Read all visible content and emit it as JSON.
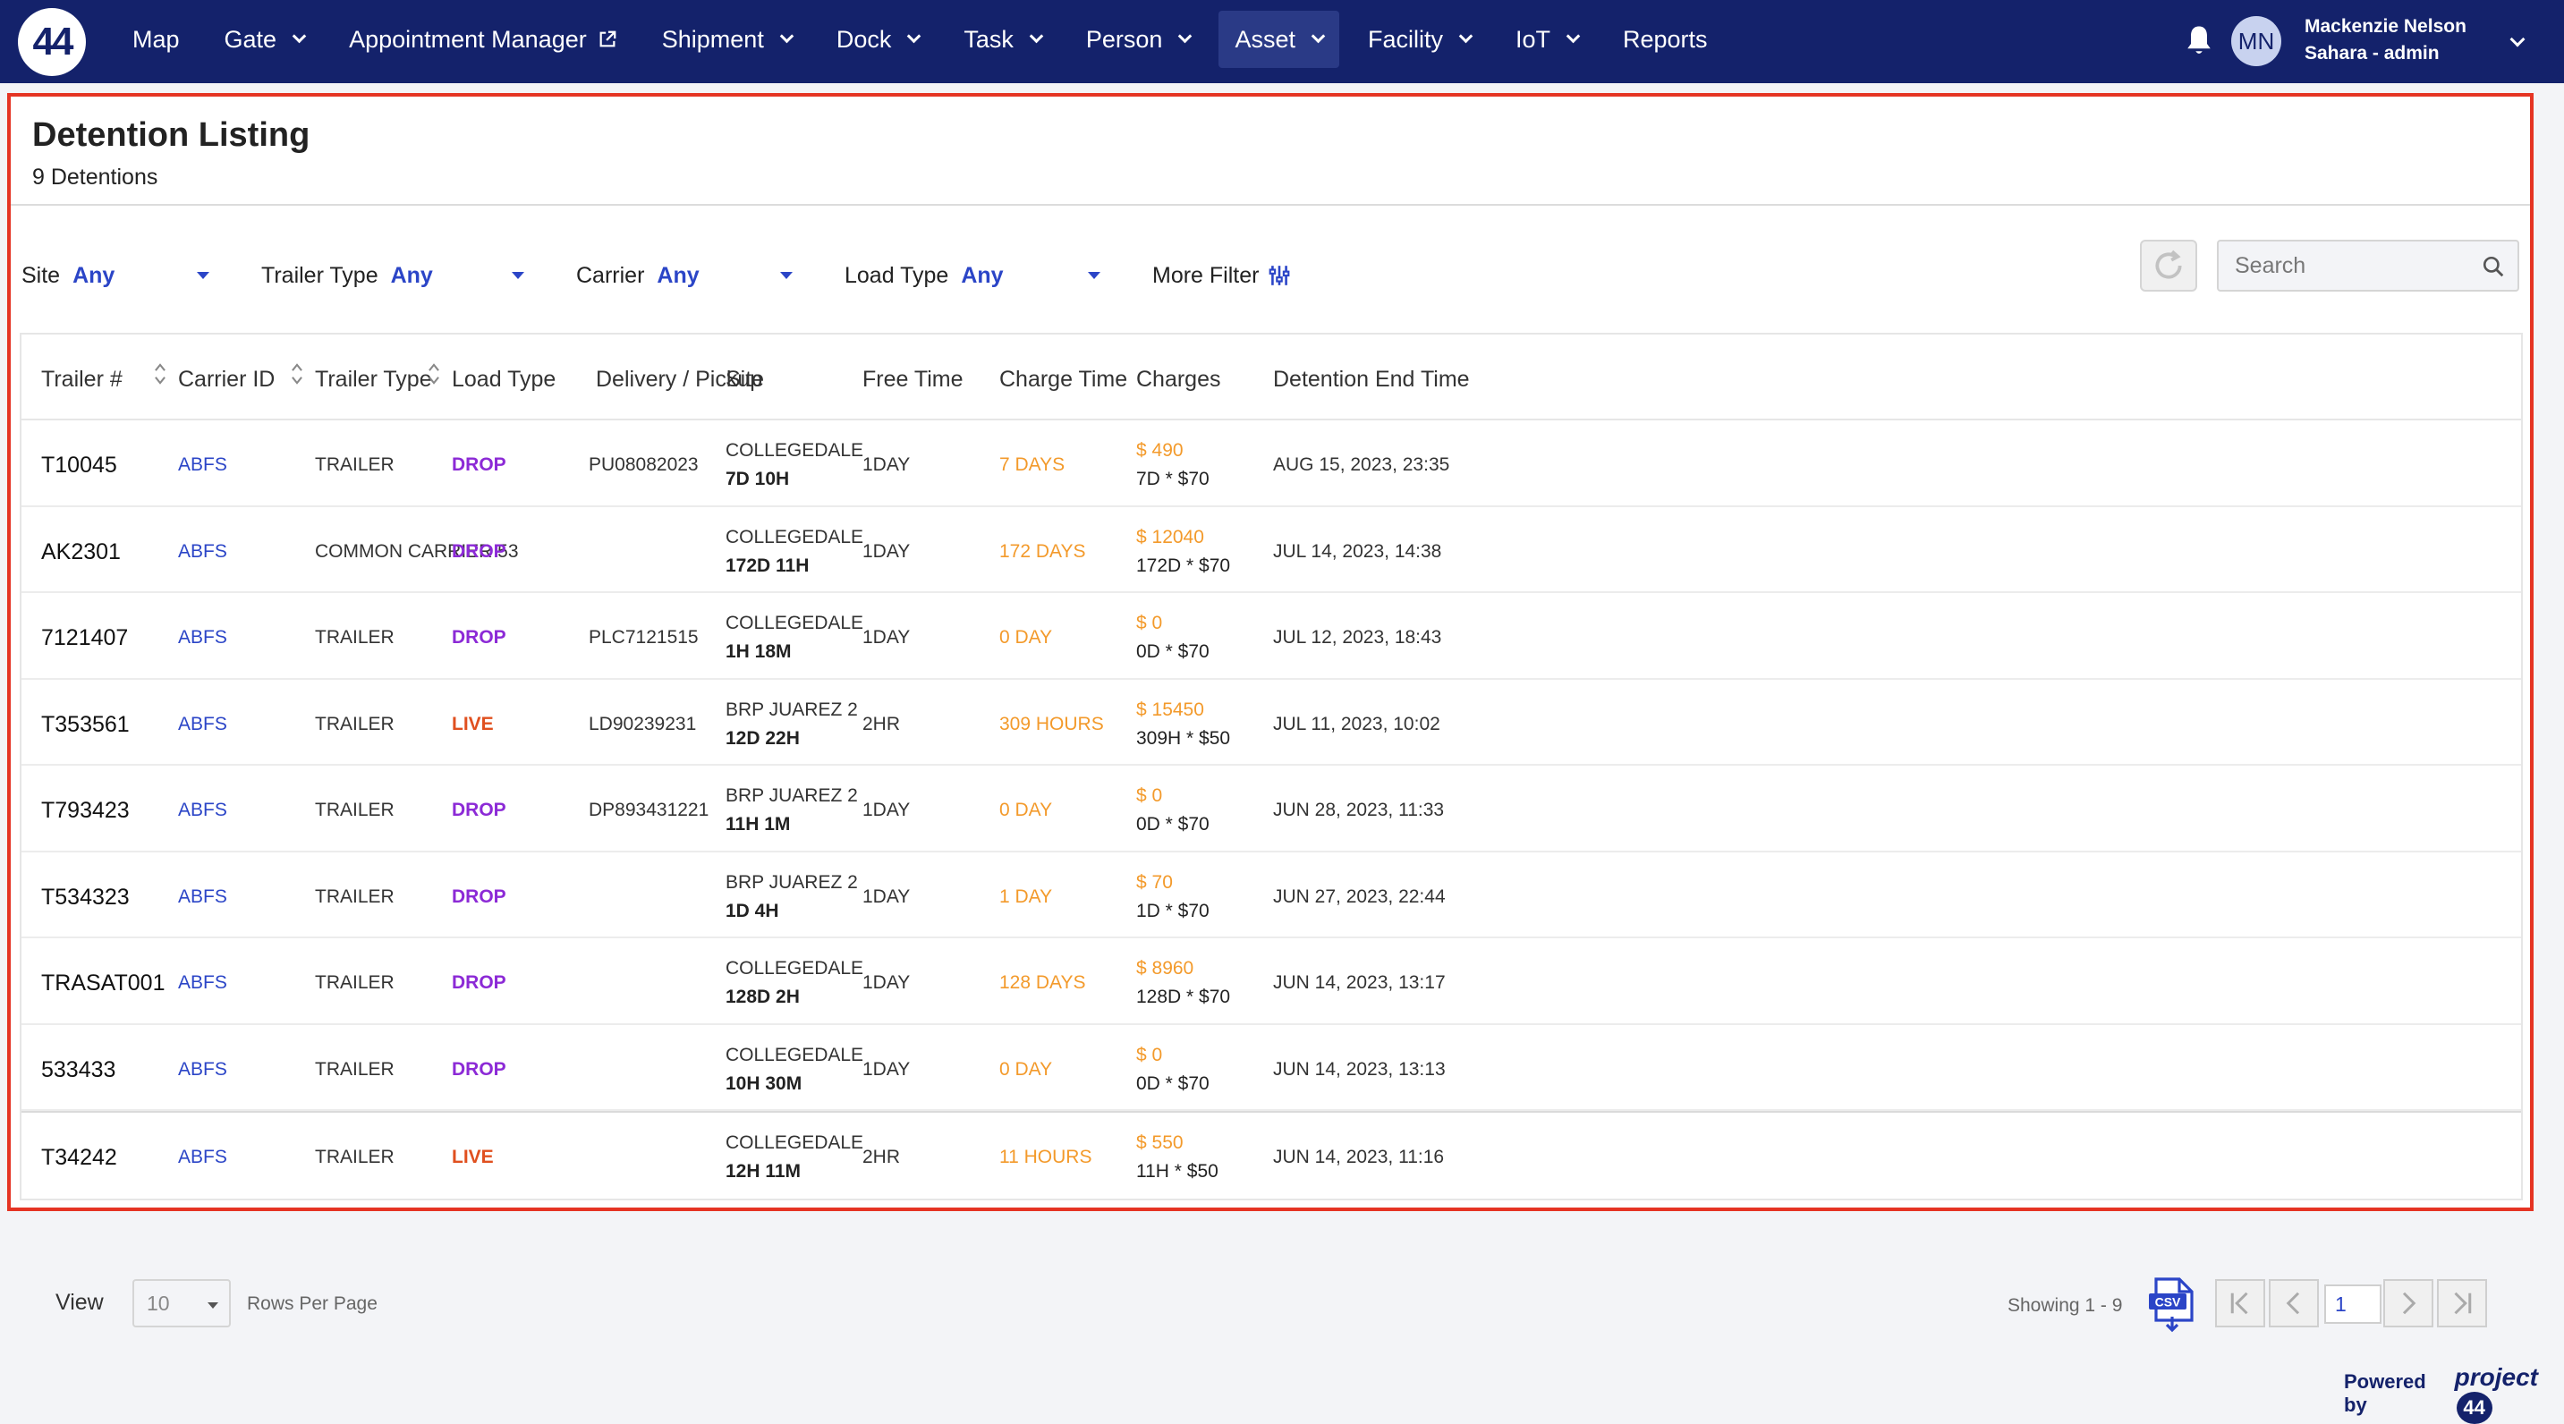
{
  "logo": {
    "text": "44"
  },
  "nav": {
    "items": [
      {
        "label": "Map",
        "caret": false
      },
      {
        "label": "Gate",
        "caret": true
      },
      {
        "label": "Appointment Manager",
        "caret": false,
        "external": true
      },
      {
        "label": "Shipment",
        "caret": true
      },
      {
        "label": "Dock",
        "caret": true
      },
      {
        "label": "Task",
        "caret": true
      },
      {
        "label": "Person",
        "caret": true
      },
      {
        "label": "Asset",
        "caret": true,
        "active": true
      },
      {
        "label": "Facility",
        "caret": true
      },
      {
        "label": "IoT",
        "caret": true
      },
      {
        "label": "Reports",
        "caret": false
      }
    ]
  },
  "user": {
    "initials": "MN",
    "name": "Mackenzie Nelson",
    "role": "Sahara - admin"
  },
  "page": {
    "title": "Detention Listing",
    "subtitle": "9 Detentions"
  },
  "filters": [
    {
      "label": "Site",
      "value": "Any"
    },
    {
      "label": "Trailer Type",
      "value": "Any"
    },
    {
      "label": "Carrier",
      "value": "Any"
    },
    {
      "label": "Load Type",
      "value": "Any"
    }
  ],
  "more_filter": "More Filter",
  "search": {
    "placeholder": "Search"
  },
  "table": {
    "headers": [
      "Trailer #",
      "Carrier ID",
      "Trailer Type",
      "Load Type",
      "Delivery / Pickup",
      "Site",
      "Free Time",
      "Charge Time",
      "Charges",
      "Detention End Time"
    ],
    "rows": [
      {
        "trailer": "T10045",
        "carrier": "ABFS",
        "type": "TRAILER",
        "load": "DROP",
        "delivery": "PU08082023",
        "site": "COLLEGEDALE",
        "site_time": "7D 10H",
        "free": "1DAY",
        "charge_time": "7 DAYS",
        "charge": "$ 490",
        "charge_calc": "7D * $70",
        "end": "AUG 15, 2023, 23:35"
      },
      {
        "trailer": "AK2301",
        "carrier": "ABFS",
        "type": "COMMON CARRIER 53",
        "load": "DROP",
        "delivery": "",
        "site": "COLLEGEDALE",
        "site_time": "172D 11H",
        "free": "1DAY",
        "charge_time": "172 DAYS",
        "charge": "$ 12040",
        "charge_calc": "172D * $70",
        "end": "JUL 14, 2023, 14:38"
      },
      {
        "trailer": "7121407",
        "carrier": "ABFS",
        "type": "TRAILER",
        "load": "DROP",
        "delivery": "PLC7121515",
        "site": "COLLEGEDALE",
        "site_time": "1H 18M",
        "free": "1DAY",
        "charge_time": "0 DAY",
        "charge": "$ 0",
        "charge_calc": "0D * $70",
        "end": "JUL 12, 2023, 18:43"
      },
      {
        "trailer": "T353561",
        "carrier": "ABFS",
        "type": "TRAILER",
        "load": "LIVE",
        "delivery": "LD90239231",
        "site": "BRP JUAREZ 2",
        "site_time": "12D 22H",
        "free": "2HR",
        "charge_time": "309 HOURS",
        "charge": "$ 15450",
        "charge_calc": "309H * $50",
        "end": "JUL 11, 2023, 10:02"
      },
      {
        "trailer": "T793423",
        "carrier": "ABFS",
        "type": "TRAILER",
        "load": "DROP",
        "delivery": "DP893431221",
        "site": "BRP JUAREZ 2",
        "site_time": "11H 1M",
        "free": "1DAY",
        "charge_time": "0 DAY",
        "charge": "$ 0",
        "charge_calc": "0D * $70",
        "end": "JUN 28, 2023, 11:33"
      },
      {
        "trailer": "T534323",
        "carrier": "ABFS",
        "type": "TRAILER",
        "load": "DROP",
        "delivery": "",
        "site": "BRP JUAREZ 2",
        "site_time": "1D 4H",
        "free": "1DAY",
        "charge_time": "1 DAY",
        "charge": "$ 70",
        "charge_calc": "1D * $70",
        "end": "JUN 27, 2023, 22:44"
      },
      {
        "trailer": "TRASAT001",
        "carrier": "ABFS",
        "type": "TRAILER",
        "load": "DROP",
        "delivery": "",
        "site": "COLLEGEDALE",
        "site_time": "128D 2H",
        "free": "1DAY",
        "charge_time": "128 DAYS",
        "charge": "$ 8960",
        "charge_calc": "128D * $70",
        "end": "JUN 14, 2023, 13:17"
      },
      {
        "trailer": "533433",
        "carrier": "ABFS",
        "type": "TRAILER",
        "load": "DROP",
        "delivery": "",
        "site": "COLLEGEDALE",
        "site_time": "10H 30M",
        "free": "1DAY",
        "charge_time": "0 DAY",
        "charge": "$ 0",
        "charge_calc": "0D * $70",
        "end": "JUN 14, 2023, 13:13"
      },
      {
        "trailer": "T34242",
        "carrier": "ABFS",
        "type": "TRAILER",
        "load": "LIVE",
        "delivery": "",
        "site": "COLLEGEDALE",
        "site_time": "12H 11M",
        "free": "2HR",
        "charge_time": "11 HOURS",
        "charge": "$ 550",
        "charge_calc": "11H * $50",
        "end": "JUN 14, 2023, 11:16"
      }
    ]
  },
  "footer": {
    "view_label": "View",
    "rows_per_page_value": "10",
    "rows_per_page_label": "Rows Per Page",
    "showing": "Showing 1 - 9",
    "current_page": "1",
    "powered_by": "Powered by",
    "brand": "project",
    "brand_badge": "44"
  },
  "colors": {
    "nav_bg": "#14226b",
    "accent_blue": "#2b45c7",
    "drop": "#8c2ad6",
    "live": "#e0501f",
    "charge_orange": "#f39a2b",
    "highlight_border": "#e53423"
  }
}
